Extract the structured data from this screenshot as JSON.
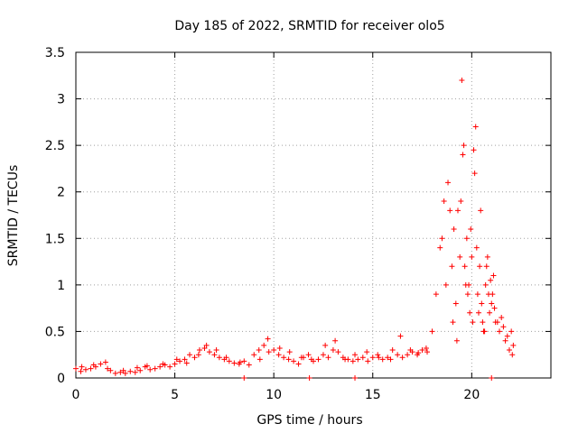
{
  "chart_data": {
    "type": "scatter",
    "title": "Day 185 of 2022, SRMTID for receiver olo5",
    "xlabel": "GPS time / hours",
    "ylabel": "SRMTID / TECUs",
    "xlim": [
      0,
      24
    ],
    "ylim": [
      0,
      3.5
    ],
    "x_ticks": [
      0,
      5,
      10,
      15,
      20
    ],
    "x_tick_labels": [
      "0",
      "5",
      "10",
      "15",
      "20"
    ],
    "y_ticks": [
      0,
      0.5,
      1,
      1.5,
      2,
      2.5,
      3,
      3.5
    ],
    "y_tick_labels": [
      "0",
      "0.5",
      "1",
      "1.5",
      "2",
      "2.5",
      "3",
      "3.5"
    ],
    "grid": true,
    "marker": "plus",
    "series": [
      {
        "name": "SRMTID",
        "color": "#ff0000",
        "x": [
          0.0,
          0.25,
          0.5,
          0.75,
          1.0,
          1.25,
          1.5,
          1.75,
          2.0,
          2.25,
          2.5,
          2.75,
          3.0,
          3.25,
          3.5,
          3.75,
          4.0,
          4.25,
          4.5,
          4.75,
          5.0,
          5.25,
          5.5,
          5.75,
          6.0,
          6.25,
          6.5,
          6.75,
          7.0,
          7.25,
          7.5,
          7.75,
          8.0,
          8.25,
          8.5,
          8.75,
          9.0,
          9.25,
          9.5,
          9.75,
          10.0,
          10.25,
          10.5,
          10.75,
          11.0,
          11.25,
          11.5,
          11.75,
          12.0,
          12.25,
          12.5,
          12.75,
          13.0,
          13.25,
          13.5,
          13.75,
          14.0,
          14.25,
          14.5,
          14.75,
          15.0,
          15.25,
          15.5,
          15.75,
          16.0,
          16.25,
          16.5,
          16.75,
          17.0,
          17.25,
          17.5,
          17.75,
          18.0,
          18.2,
          18.4,
          18.6,
          18.8,
          19.0,
          19.1,
          19.2,
          19.3,
          19.4,
          19.5,
          19.6,
          19.7,
          19.8,
          19.9,
          20.0,
          20.1,
          20.2,
          20.3,
          20.4,
          20.5,
          20.6,
          20.7,
          20.8,
          20.9,
          21.0,
          21.1,
          21.2,
          21.4,
          21.6,
          21.8,
          22.0,
          22.1,
          0.3,
          0.9,
          1.6,
          2.4,
          3.1,
          3.6,
          4.4,
          5.1,
          5.6,
          6.2,
          6.6,
          7.1,
          7.6,
          8.3,
          9.3,
          9.7,
          10.3,
          10.8,
          11.4,
          11.9,
          12.6,
          13.1,
          13.6,
          14.1,
          14.7,
          15.3,
          15.9,
          16.4,
          16.9,
          17.3,
          17.7,
          18.5,
          18.7,
          18.9,
          19.05,
          19.25,
          19.45,
          19.55,
          19.65,
          19.75,
          19.85,
          19.95,
          20.05,
          20.15,
          20.25,
          20.35,
          20.45,
          20.55,
          20.65,
          20.75,
          20.85,
          20.95,
          21.05,
          21.15,
          21.3,
          21.5,
          21.7,
          21.9,
          22.05,
          8.5,
          11.8,
          14.1,
          21.0
        ],
        "y": [
          0.1,
          0.07,
          0.09,
          0.1,
          0.12,
          0.15,
          0.17,
          0.08,
          0.05,
          0.06,
          0.05,
          0.07,
          0.06,
          0.08,
          0.12,
          0.09,
          0.1,
          0.12,
          0.14,
          0.12,
          0.15,
          0.18,
          0.2,
          0.25,
          0.22,
          0.3,
          0.32,
          0.28,
          0.25,
          0.22,
          0.2,
          0.18,
          0.16,
          0.15,
          0.18,
          0.14,
          0.25,
          0.3,
          0.35,
          0.28,
          0.3,
          0.25,
          0.22,
          0.2,
          0.18,
          0.15,
          0.22,
          0.25,
          0.18,
          0.2,
          0.25,
          0.22,
          0.3,
          0.28,
          0.22,
          0.2,
          0.18,
          0.2,
          0.22,
          0.18,
          0.22,
          0.25,
          0.2,
          0.22,
          0.3,
          0.25,
          0.22,
          0.25,
          0.28,
          0.25,
          0.3,
          0.28,
          0.5,
          0.9,
          1.4,
          1.9,
          2.1,
          1.2,
          1.6,
          0.8,
          1.8,
          1.3,
          3.2,
          2.5,
          1.0,
          0.9,
          0.7,
          1.3,
          2.45,
          2.7,
          0.9,
          1.2,
          0.8,
          0.5,
          1.0,
          1.3,
          0.7,
          0.8,
          1.1,
          0.6,
          0.5,
          0.55,
          0.45,
          0.5,
          0.35,
          0.12,
          0.14,
          0.1,
          0.08,
          0.11,
          0.13,
          0.15,
          0.2,
          0.16,
          0.25,
          0.35,
          0.3,
          0.22,
          0.17,
          0.2,
          0.42,
          0.32,
          0.28,
          0.22,
          0.2,
          0.35,
          0.4,
          0.2,
          0.25,
          0.28,
          0.22,
          0.2,
          0.45,
          0.3,
          0.27,
          0.32,
          1.5,
          1.0,
          1.8,
          0.6,
          0.4,
          1.9,
          2.4,
          1.2,
          1.5,
          1.0,
          1.6,
          0.6,
          2.2,
          1.4,
          0.7,
          1.8,
          0.6,
          0.5,
          1.2,
          0.9,
          1.05,
          0.9,
          0.75,
          0.6,
          0.65,
          0.4,
          0.3,
          0.25,
          0.0,
          0.0,
          0.0,
          0.0
        ]
      }
    ]
  }
}
